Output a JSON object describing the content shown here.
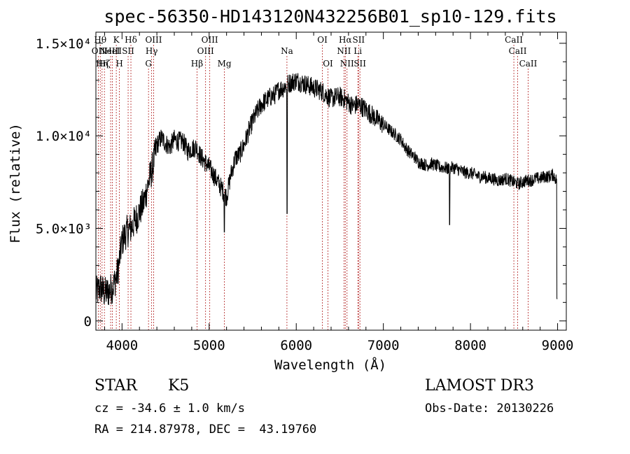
{
  "chart_data": {
    "type": "line",
    "title": "spec-56350-HD143120N432256B01_sp10-129.fits",
    "xlabel": "Wavelength (Å)",
    "ylabel": "Flux (relative)",
    "xlim": [
      3700,
      9100
    ],
    "ylim": [
      -500,
      15600
    ],
    "x_ticks": [
      {
        "value": 4000,
        "label": "4000"
      },
      {
        "value": 5000,
        "label": "5000"
      },
      {
        "value": 6000,
        "label": "6000"
      },
      {
        "value": 7000,
        "label": "7000"
      },
      {
        "value": 8000,
        "label": "8000"
      },
      {
        "value": 9000,
        "label": "9000"
      }
    ],
    "y_ticks": [
      {
        "value": 0,
        "label": "0"
      },
      {
        "value": 5000,
        "label": "5.0×10³"
      },
      {
        "value": 10000,
        "label": "1.0×10⁴"
      },
      {
        "value": 15000,
        "label": "1.5×10⁴"
      }
    ],
    "grid": false,
    "legend": "none",
    "line_color": "#000000",
    "marker_color": "#b22222",
    "series": [
      {
        "x": [
          3700,
          3750,
          3800,
          3850,
          3900,
          3950,
          4000,
          4050,
          4100,
          4150,
          4200,
          4250,
          4300,
          4350,
          4400,
          4450,
          4500,
          4550,
          4600,
          4650,
          4700,
          4750,
          4800,
          4850,
          4900,
          4950,
          5000,
          5050,
          5100,
          5150,
          5200,
          5250,
          5300,
          5350,
          5400,
          5450,
          5500,
          5550,
          5600,
          5650,
          5700,
          5750,
          5800,
          5850,
          5900,
          5950,
          6000,
          6050,
          6100,
          6150,
          6200,
          6250,
          6300,
          6350,
          6400,
          6450,
          6500,
          6550,
          6600,
          6650,
          6700,
          6750,
          6800,
          6850,
          6900,
          6950,
          7000,
          7050,
          7100,
          7150,
          7200,
          7250,
          7300,
          7350,
          7400,
          7450,
          7500,
          7550,
          7600,
          7650,
          7700,
          7750,
          7800,
          7850,
          7900,
          7950,
          8000,
          8050,
          8100,
          8150,
          8200,
          8250,
          8300,
          8350,
          8400,
          8450,
          8500,
          8550,
          8600,
          8650,
          8700,
          8750,
          8800,
          8850,
          8900,
          8950,
          9000
        ],
        "y": [
          1500,
          1800,
          1500,
          1600,
          1900,
          2600,
          4300,
          4800,
          5000,
          5400,
          5900,
          6400,
          7400,
          8300,
          9500,
          9900,
          9600,
          9400,
          9800,
          9700,
          9700,
          9200,
          9300,
          9400,
          8900,
          8600,
          8300,
          7900,
          7500,
          7100,
          6700,
          7900,
          8800,
          9000,
          9500,
          10200,
          10800,
          11300,
          11700,
          11900,
          12100,
          12200,
          12500,
          12600,
          12800,
          12900,
          13000,
          12900,
          12800,
          12700,
          12600,
          12500,
          12400,
          12200,
          12000,
          12100,
          12100,
          12000,
          11800,
          11600,
          11700,
          11600,
          11400,
          11200,
          11000,
          10800,
          10600,
          10400,
          10200,
          10000,
          9800,
          9400,
          9100,
          8900,
          8600,
          8500,
          8400,
          8500,
          8400,
          8300,
          8300,
          8200,
          8300,
          8200,
          8100,
          8000,
          8000,
          7900,
          7800,
          7800,
          7700,
          7700,
          7600,
          7600,
          7700,
          7600,
          7500,
          7400,
          7500,
          7600,
          7600,
          7700,
          7700,
          7800,
          7800,
          7900,
          7500
        ]
      }
    ],
    "absorption_features": [
      {
        "x": 5895,
        "y": 5800
      },
      {
        "x": 7760,
        "y": 5200
      },
      {
        "x": 5175,
        "y": 4800
      },
      {
        "x": 8995,
        "y": 1200
      }
    ],
    "line_markers": [
      {
        "x": 3727,
        "label": "OII",
        "row": 1
      },
      {
        "x": 3750,
        "label": "Hθ",
        "row": 0
      },
      {
        "x": 3771,
        "label": "Hη",
        "row": 2
      },
      {
        "x": 3798,
        "label": "Hζ",
        "row": 2
      },
      {
        "x": 3869,
        "label": "NeIII",
        "row": 1
      },
      {
        "x": 3889,
        "label": "HeI",
        "row": 1
      },
      {
        "x": 3934,
        "label": "K",
        "row": 0
      },
      {
        "x": 3970,
        "label": "H",
        "row": 2
      },
      {
        "x": 4070,
        "label": "SII",
        "row": 1
      },
      {
        "x": 4102,
        "label": "Hδ",
        "row": 0
      },
      {
        "x": 4304,
        "label": "G",
        "row": 2
      },
      {
        "x": 4340,
        "label": "Hγ",
        "row": 1
      },
      {
        "x": 4363,
        "label": "OIII",
        "row": 0
      },
      {
        "x": 4861,
        "label": "Hβ",
        "row": 2
      },
      {
        "x": 4959,
        "label": "OIII",
        "row": 1
      },
      {
        "x": 5007,
        "label": "OIII",
        "row": 0
      },
      {
        "x": 5175,
        "label": "Mg",
        "row": 2
      },
      {
        "x": 5893,
        "label": "Na",
        "row": 1
      },
      {
        "x": 6300,
        "label": "OI",
        "row": 0
      },
      {
        "x": 6364,
        "label": "OI",
        "row": 2
      },
      {
        "x": 6548,
        "label": "NII",
        "row": 1
      },
      {
        "x": 6563,
        "label": "Hα",
        "row": 0
      },
      {
        "x": 6583,
        "label": "NII",
        "row": 2
      },
      {
        "x": 6707,
        "label": "Li",
        "row": 1
      },
      {
        "x": 6716,
        "label": "SII",
        "row": 0
      },
      {
        "x": 6731,
        "label": "SII",
        "row": 2
      },
      {
        "x": 8498,
        "label": "CaII",
        "row": 0
      },
      {
        "x": 8542,
        "label": "CaII",
        "row": 1
      },
      {
        "x": 8662,
        "label": "CaII",
        "row": 2
      }
    ]
  },
  "info": {
    "object_class": "STAR",
    "subclass": "K5",
    "survey": "LAMOST DR3",
    "redshift": "cz = -34.6 ± 1.0 km/s",
    "obs_date": "Obs-Date: 20130226",
    "coords": "RA = 214.87978, DEC =  43.19760"
  }
}
